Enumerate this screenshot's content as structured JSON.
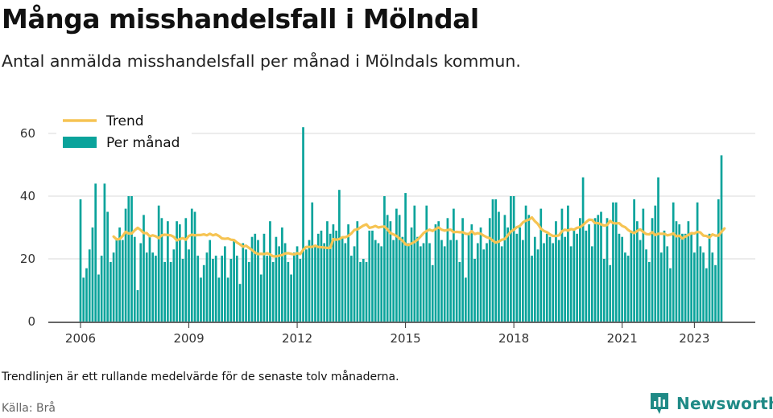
{
  "header": {
    "title": "Många misshandelsfall i Mölndal",
    "subtitle": "Antal anmälda misshandelsfall per månad i Mölndals kommun."
  },
  "footer": {
    "note": "Trendlinjen är ett rullande medelvärde för de senaste tolv månaderna.",
    "source": "Källa: Brå",
    "brand": "Newsworthy"
  },
  "colors": {
    "bar": "#0aa39b",
    "trend": "#f6c453",
    "grid": "#d9d9d9",
    "axis": "#333333",
    "brand": "#1f8a86"
  },
  "icons": {
    "brand_logo": "bar-chart-speech-bubble-icon"
  },
  "chart_data": {
    "type": "bar",
    "title": "",
    "xlabel": "",
    "ylabel": "",
    "ylim": [
      0,
      64
    ],
    "yticks": [
      0,
      20,
      40,
      60
    ],
    "xticks": [
      "2006",
      "2009",
      "2012",
      "2015",
      "2018",
      "2021",
      "2023"
    ],
    "xtick_month_index": [
      0,
      36,
      72,
      108,
      144,
      180,
      204
    ],
    "grid": true,
    "legend_position": "top-left",
    "start": "2006-01",
    "series": [
      {
        "name": "Per månad",
        "type": "bar",
        "values": [
          39,
          14,
          17,
          23,
          30,
          44,
          15,
          21,
          44,
          35,
          19,
          22,
          26,
          30,
          26,
          36,
          40,
          40,
          27,
          10,
          25,
          34,
          22,
          27,
          22,
          21,
          37,
          33,
          19,
          32,
          19,
          23,
          32,
          31,
          20,
          33,
          23,
          36,
          35,
          21,
          14,
          18,
          22,
          26,
          20,
          21,
          14,
          21,
          24,
          14,
          20,
          26,
          21,
          12,
          25,
          23,
          19,
          27,
          28,
          26,
          15,
          28,
          21,
          32,
          19,
          27,
          24,
          30,
          25,
          19,
          15,
          22,
          24,
          20,
          62,
          23,
          26,
          38,
          24,
          28,
          29,
          25,
          32,
          28,
          31,
          29,
          42,
          27,
          25,
          31,
          21,
          24,
          32,
          19,
          20,
          19,
          29,
          29,
          26,
          25,
          24,
          40,
          34,
          32,
          26,
          36,
          34,
          27,
          41,
          25,
          30,
          37,
          27,
          24,
          25,
          37,
          25,
          18,
          31,
          32,
          26,
          24,
          33,
          26,
          36,
          26,
          19,
          33,
          14,
          28,
          31,
          20,
          25,
          30,
          23,
          25,
          33,
          39,
          39,
          35,
          24,
          34,
          30,
          40,
          40,
          28,
          30,
          26,
          37,
          34,
          21,
          27,
          23,
          36,
          25,
          28,
          27,
          25,
          32,
          26,
          36,
          27,
          37,
          24,
          29,
          28,
          33,
          46,
          29,
          31,
          24,
          33,
          34,
          35,
          20,
          33,
          18,
          38,
          38,
          28,
          27,
          22,
          21,
          29,
          39,
          32,
          26,
          36,
          23,
          19,
          33,
          37,
          46,
          22,
          29,
          24,
          17,
          38,
          32,
          31,
          28,
          28,
          32,
          28,
          22,
          38,
          24,
          22,
          17,
          28,
          22,
          18,
          39,
          53
        ]
      },
      {
        "name": "Trend",
        "type": "line",
        "start_index": 11,
        "values": [
          27.1,
          26.2,
          26.3,
          27.3,
          28.6,
          28.1,
          28.1,
          29.1,
          29.9,
          29.2,
          28.2,
          28.2,
          27.2,
          27.5,
          27.2,
          26.6,
          27.5,
          27.7,
          27.6,
          27.5,
          27.0,
          25.9,
          26.3,
          26.6,
          26.1,
          27.3,
          27.7,
          27.5,
          27.6,
          27.6,
          27.8,
          27.5,
          28.0,
          27.5,
          27.8,
          27.3,
          26.5,
          26.4,
          26.5,
          26.1,
          26.0,
          25.2,
          24.6,
          23.9,
          24.2,
          23.5,
          22.8,
          22.0,
          21.5,
          21.6,
          21.5,
          21.8,
          21.4,
          20.8,
          20.8,
          21.0,
          21.2,
          21.7,
          21.8,
          21.6,
          21.4,
          21.8,
          21.5,
          22.9,
          23.8,
          23.8,
          23.8,
          24.2,
          23.8,
          23.7,
          23.6,
          23.5,
          23.5,
          26.3,
          26.1,
          26.3,
          26.9,
          26.9,
          27.3,
          28.1,
          29.2,
          29.4,
          30.0,
          30.6,
          31.0,
          29.9,
          30.1,
          30.5,
          30.0,
          30.2,
          30.3,
          29.4,
          28.2,
          27.8,
          27.3,
          26.5,
          25.8,
          24.6,
          24.4,
          24.9,
          25.4,
          26.1,
          27.1,
          28.2,
          28.9,
          29.3,
          28.9,
          29.5,
          30.0,
          29.3,
          29.0,
          29.2,
          29.3,
          28.5,
          28.6,
          28.5,
          28.5,
          28.0,
          27.9,
          28.8,
          27.9,
          28.2,
          28.0,
          27.4,
          26.9,
          26.6,
          25.8,
          25.2,
          25.5,
          26.1,
          26.3,
          27.5,
          28.7,
          29.3,
          30.1,
          30.5,
          31.6,
          32.2,
          32.5,
          33.2,
          32.0,
          31.1,
          29.6,
          28.9,
          28.5,
          27.8,
          27.3,
          27.3,
          27.5,
          28.8,
          29.3,
          29.0,
          29.5,
          29.3,
          29.9,
          30.1,
          30.8,
          31.7,
          32.5,
          32.4,
          31.4,
          31.4,
          31.0,
          30.6,
          30.8,
          32.1,
          31.4,
          31.3,
          31.4,
          30.5,
          30.1,
          29.2,
          28.6,
          28.2,
          28.9,
          29.4,
          28.6,
          27.9,
          27.8,
          28.5,
          27.6,
          28.0,
          28.0,
          28.0,
          27.5,
          27.7,
          28.1,
          27.2,
          27.4,
          26.5,
          27.1,
          27.6,
          28.2,
          28.1,
          28.6,
          28.4,
          27.4,
          27.3,
          26.8,
          27.8,
          27.4,
          27.4,
          28.6,
          29.7
        ]
      }
    ]
  }
}
